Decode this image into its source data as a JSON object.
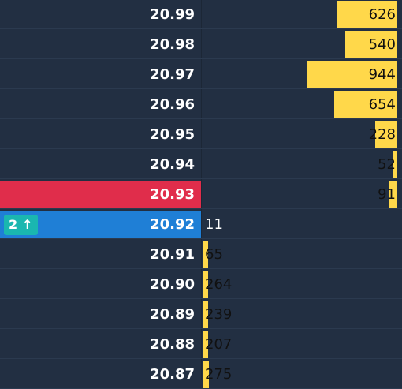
{
  "ladder": {
    "sell_levels": [
      {
        "price": "20.99",
        "volume": "626"
      },
      {
        "price": "20.98",
        "volume": "540"
      },
      {
        "price": "20.97",
        "volume": "944"
      },
      {
        "price": "20.96",
        "volume": "654"
      },
      {
        "price": "20.95",
        "volume": "228"
      },
      {
        "price": "20.94",
        "volume": "52"
      },
      {
        "price": "20.93",
        "volume": "91",
        "highlight": "ask"
      }
    ],
    "buy_levels": [
      {
        "price": "20.92",
        "volume": "11",
        "highlight": "bid",
        "order_badge": {
          "count": "2",
          "arrow": "↑"
        }
      },
      {
        "price": "20.91",
        "volume": "65"
      },
      {
        "price": "20.90",
        "volume": "264"
      },
      {
        "price": "20.89",
        "volume": "239"
      },
      {
        "price": "20.88",
        "volume": "207"
      },
      {
        "price": "20.87",
        "volume": "275"
      }
    ]
  },
  "colors": {
    "background": "#222f42",
    "ask_highlight": "#e02d4b",
    "bid_highlight": "#1f7fd6",
    "volume_bar": "#ffd84a",
    "order_badge": "#1ab7b0"
  }
}
